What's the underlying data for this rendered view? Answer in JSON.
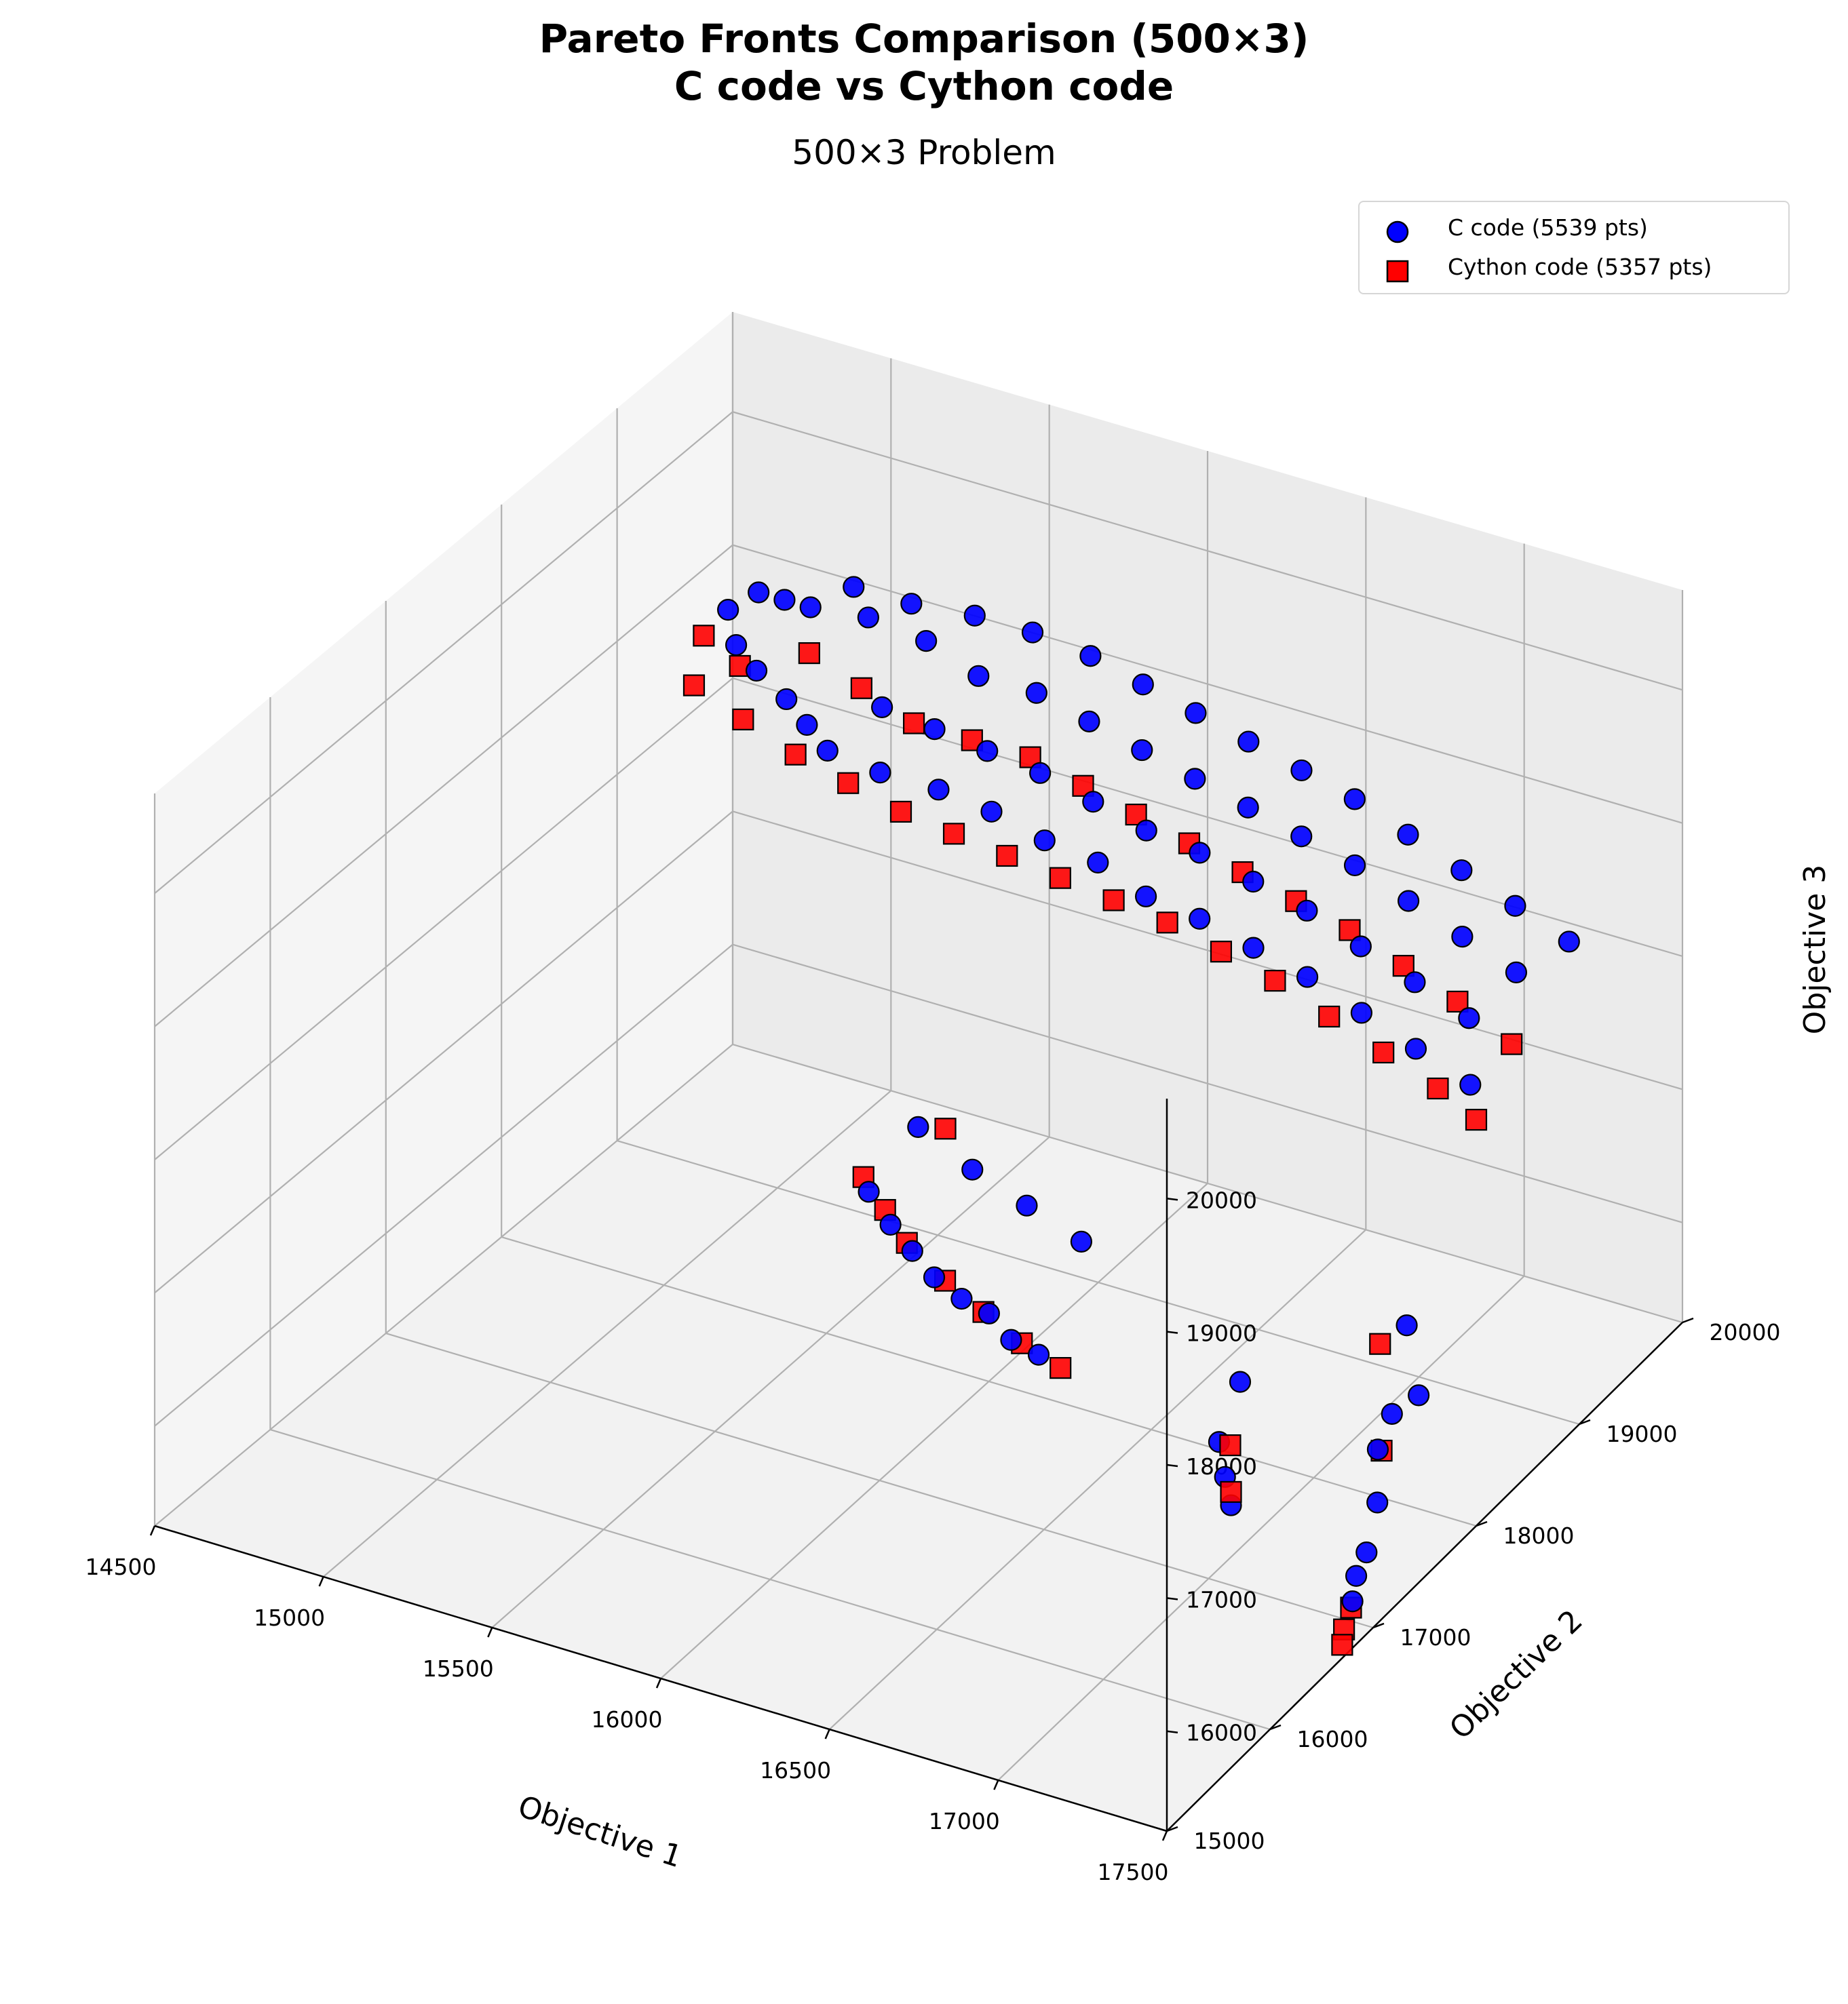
{
  "chart_data": {
    "type": "scatter",
    "projection": "3d",
    "title": "Pareto Fronts Comparison (500×3)\nC code vs Cython code",
    "title_lines": [
      "Pareto Fronts Comparison (500×3)",
      "C code vs Cython code"
    ],
    "subtitle": "500×3 Problem",
    "xlabel": "Objective 1",
    "ylabel": "Objective 2",
    "zlabel": "Objective 3",
    "xlim": [
      14500,
      17500
    ],
    "ylim": [
      15000,
      20000
    ],
    "zlim": [
      15250,
      20750
    ],
    "xticks": [
      "14500",
      "15000",
      "15500",
      "16000",
      "16500",
      "17000",
      "17500"
    ],
    "yticks": [
      "15000",
      "16000",
      "17000",
      "18000",
      "19000",
      "20000"
    ],
    "zticks": [
      "16000",
      "17000",
      "18000",
      "19000",
      "20000"
    ],
    "grid": true,
    "legend_position": "top-right",
    "series": [
      {
        "name": "C code (5539 pts)",
        "marker": "circle",
        "color": "#0000ff",
        "edge_color": "#000000",
        "points": [
          [
            14540,
            19850,
            18650
          ],
          [
            14600,
            19950,
            18750
          ],
          [
            14620,
            19700,
            18550
          ],
          [
            14700,
            19900,
            18800
          ],
          [
            14720,
            19600,
            18500
          ],
          [
            14800,
            19850,
            18850
          ],
          [
            14850,
            19500,
            18450
          ],
          [
            14900,
            19950,
            19000
          ],
          [
            14950,
            19400,
            18400
          ],
          [
            15000,
            19800,
            18950
          ],
          [
            15050,
            19300,
            18350
          ],
          [
            15100,
            19900,
            19050
          ],
          [
            15150,
            19500,
            18600
          ],
          [
            15200,
            19750,
            18950
          ],
          [
            15250,
            19200,
            18400
          ],
          [
            15300,
            19900,
            19100
          ],
          [
            15350,
            19400,
            18650
          ],
          [
            15400,
            19650,
            18900
          ],
          [
            15450,
            19150,
            18450
          ],
          [
            15500,
            19850,
            19150
          ],
          [
            15550,
            19300,
            18700
          ],
          [
            15600,
            19600,
            18950
          ],
          [
            15650,
            19050,
            18500
          ],
          [
            15700,
            19800,
            19150
          ],
          [
            15750,
            19200,
            18750
          ],
          [
            15800,
            19500,
            18950
          ],
          [
            15850,
            18950,
            18500
          ],
          [
            15900,
            19700,
            19150
          ],
          [
            15950,
            19100,
            18750
          ],
          [
            16000,
            19400,
            18950
          ],
          [
            16050,
            18850,
            18550
          ],
          [
            16100,
            19600,
            19150
          ],
          [
            16150,
            19000,
            18750
          ],
          [
            16200,
            19300,
            18950
          ],
          [
            16250,
            18700,
            18550
          ],
          [
            16300,
            19500,
            19150
          ],
          [
            16350,
            18900,
            18800
          ],
          [
            16400,
            19200,
            18950
          ],
          [
            16450,
            18600,
            18600
          ],
          [
            16500,
            19400,
            19150
          ],
          [
            16550,
            18800,
            18800
          ],
          [
            16600,
            19100,
            18950
          ],
          [
            16650,
            18500,
            18600
          ],
          [
            16700,
            19300,
            19150
          ],
          [
            16750,
            18700,
            18800
          ],
          [
            16800,
            19000,
            18950
          ],
          [
            16850,
            18400,
            18600
          ],
          [
            16900,
            19200,
            19100
          ],
          [
            16950,
            18600,
            18750
          ],
          [
            17000,
            18900,
            18900
          ],
          [
            17050,
            18300,
            18550
          ],
          [
            17100,
            19100,
            19050
          ],
          [
            17150,
            18500,
            18700
          ],
          [
            17200,
            18800,
            18850
          ],
          [
            17250,
            18200,
            18500
          ],
          [
            17300,
            19000,
            19000
          ],
          [
            17350,
            18400,
            18650
          ],
          [
            17400,
            18700,
            18800
          ],
          [
            17450,
            18100,
            18450
          ],
          [
            17500,
            18900,
            18950
          ],
          [
            15800,
            17500,
            16900
          ],
          [
            15900,
            17400,
            16800
          ],
          [
            16000,
            17300,
            16750
          ],
          [
            16100,
            17200,
            16700
          ],
          [
            16200,
            17150,
            16650
          ],
          [
            16300,
            17100,
            16650
          ],
          [
            16400,
            17000,
            16600
          ],
          [
            16500,
            16950,
            16600
          ],
          [
            15850,
            17800,
            17200
          ],
          [
            16050,
            17700,
            17100
          ],
          [
            16250,
            17600,
            17050
          ],
          [
            16450,
            17500,
            17000
          ],
          [
            17000,
            17100,
            16200
          ],
          [
            17050,
            17000,
            16050
          ],
          [
            17100,
            16900,
            15950
          ],
          [
            17000,
            17300,
            16500
          ],
          [
            17450,
            17200,
            16000
          ],
          [
            17480,
            17000,
            15800
          ],
          [
            17500,
            16800,
            15600
          ],
          [
            17400,
            17500,
            16400
          ],
          [
            17350,
            17800,
            16800
          ],
          [
            17450,
            17600,
            16500
          ],
          [
            17480,
            16900,
            15700
          ],
          [
            17420,
            17300,
            16300
          ]
        ]
      },
      {
        "name": "Cython code (5357 pts)",
        "marker": "square",
        "color": "#ff0000",
        "edge_color": "#000000",
        "points": [
          [
            14500,
            19750,
            18500
          ],
          [
            14560,
            19500,
            18350
          ],
          [
            14650,
            19650,
            18450
          ],
          [
            14750,
            19400,
            18300
          ],
          [
            14850,
            19700,
            18650
          ],
          [
            14950,
            19300,
            18250
          ],
          [
            15050,
            19600,
            18600
          ],
          [
            15150,
            19200,
            18250
          ],
          [
            15250,
            19500,
            18550
          ],
          [
            15350,
            19100,
            18250
          ],
          [
            15450,
            19450,
            18600
          ],
          [
            15550,
            19000,
            18300
          ],
          [
            15650,
            19400,
            18650
          ],
          [
            15750,
            18900,
            18350
          ],
          [
            15850,
            19300,
            18650
          ],
          [
            15950,
            18800,
            18400
          ],
          [
            16050,
            19200,
            18650
          ],
          [
            16150,
            18700,
            18450
          ],
          [
            16250,
            19100,
            18650
          ],
          [
            16350,
            18600,
            18500
          ],
          [
            16450,
            19000,
            18650
          ],
          [
            16550,
            18500,
            18500
          ],
          [
            16650,
            18900,
            18650
          ],
          [
            16750,
            18400,
            18500
          ],
          [
            16850,
            18800,
            18650
          ],
          [
            16950,
            18300,
            18450
          ],
          [
            17050,
            18700,
            18600
          ],
          [
            17150,
            18200,
            18400
          ],
          [
            17250,
            18600,
            18550
          ],
          [
            17350,
            18100,
            18350
          ],
          [
            17450,
            18500,
            18450
          ],
          [
            17500,
            18000,
            18300
          ],
          [
            15750,
            17600,
            16900
          ],
          [
            15850,
            17500,
            16800
          ],
          [
            15950,
            17400,
            16700
          ],
          [
            16100,
            17300,
            16600
          ],
          [
            16250,
            17200,
            16550
          ],
          [
            16400,
            17100,
            16500
          ],
          [
            16550,
            17000,
            16500
          ],
          [
            15900,
            17900,
            17150
          ],
          [
            17050,
            17050,
            16250
          ],
          [
            17100,
            16900,
            16050
          ],
          [
            17480,
            16850,
            15500
          ],
          [
            17500,
            16700,
            15350
          ],
          [
            17490,
            16750,
            15420
          ],
          [
            17400,
            17400,
            16200
          ],
          [
            17300,
            17700,
            16700
          ]
        ]
      }
    ]
  }
}
